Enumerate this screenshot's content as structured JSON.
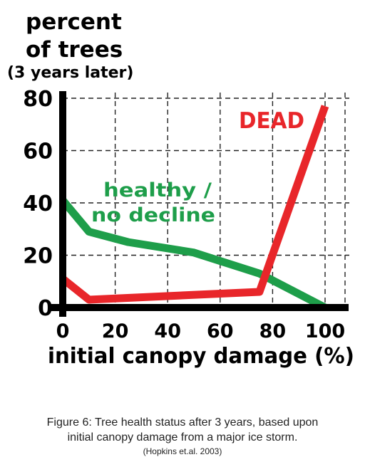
{
  "chart_data": {
    "type": "line",
    "ylabel_lines": [
      "percent",
      "of trees",
      "(3 years later)"
    ],
    "xlabel": "initial canopy damage (%)",
    "x_ticks": [
      0,
      20,
      40,
      60,
      80,
      100
    ],
    "y_ticks": [
      0,
      20,
      40,
      60,
      80
    ],
    "xlim": [
      0,
      110
    ],
    "ylim": [
      0,
      85
    ],
    "grid": true,
    "series": [
      {
        "name": "healthy / no decline",
        "name_lines": [
          "healthy /",
          "no decline"
        ],
        "color": "#1e9e4a",
        "x": [
          0,
          10,
          25,
          50,
          75,
          100
        ],
        "y": [
          41,
          29,
          25,
          21,
          13,
          0
        ]
      },
      {
        "name": "DEAD",
        "color": "#e8262a",
        "x": [
          0,
          10,
          75,
          100
        ],
        "y": [
          11,
          3,
          6,
          77
        ]
      }
    ]
  },
  "caption": {
    "line1": "Figure 6:  Tree health status after 3 years, based upon",
    "line2": "initial canopy damage from a major ice storm.",
    "line3": "(Hopkins et.al. 2003)"
  }
}
